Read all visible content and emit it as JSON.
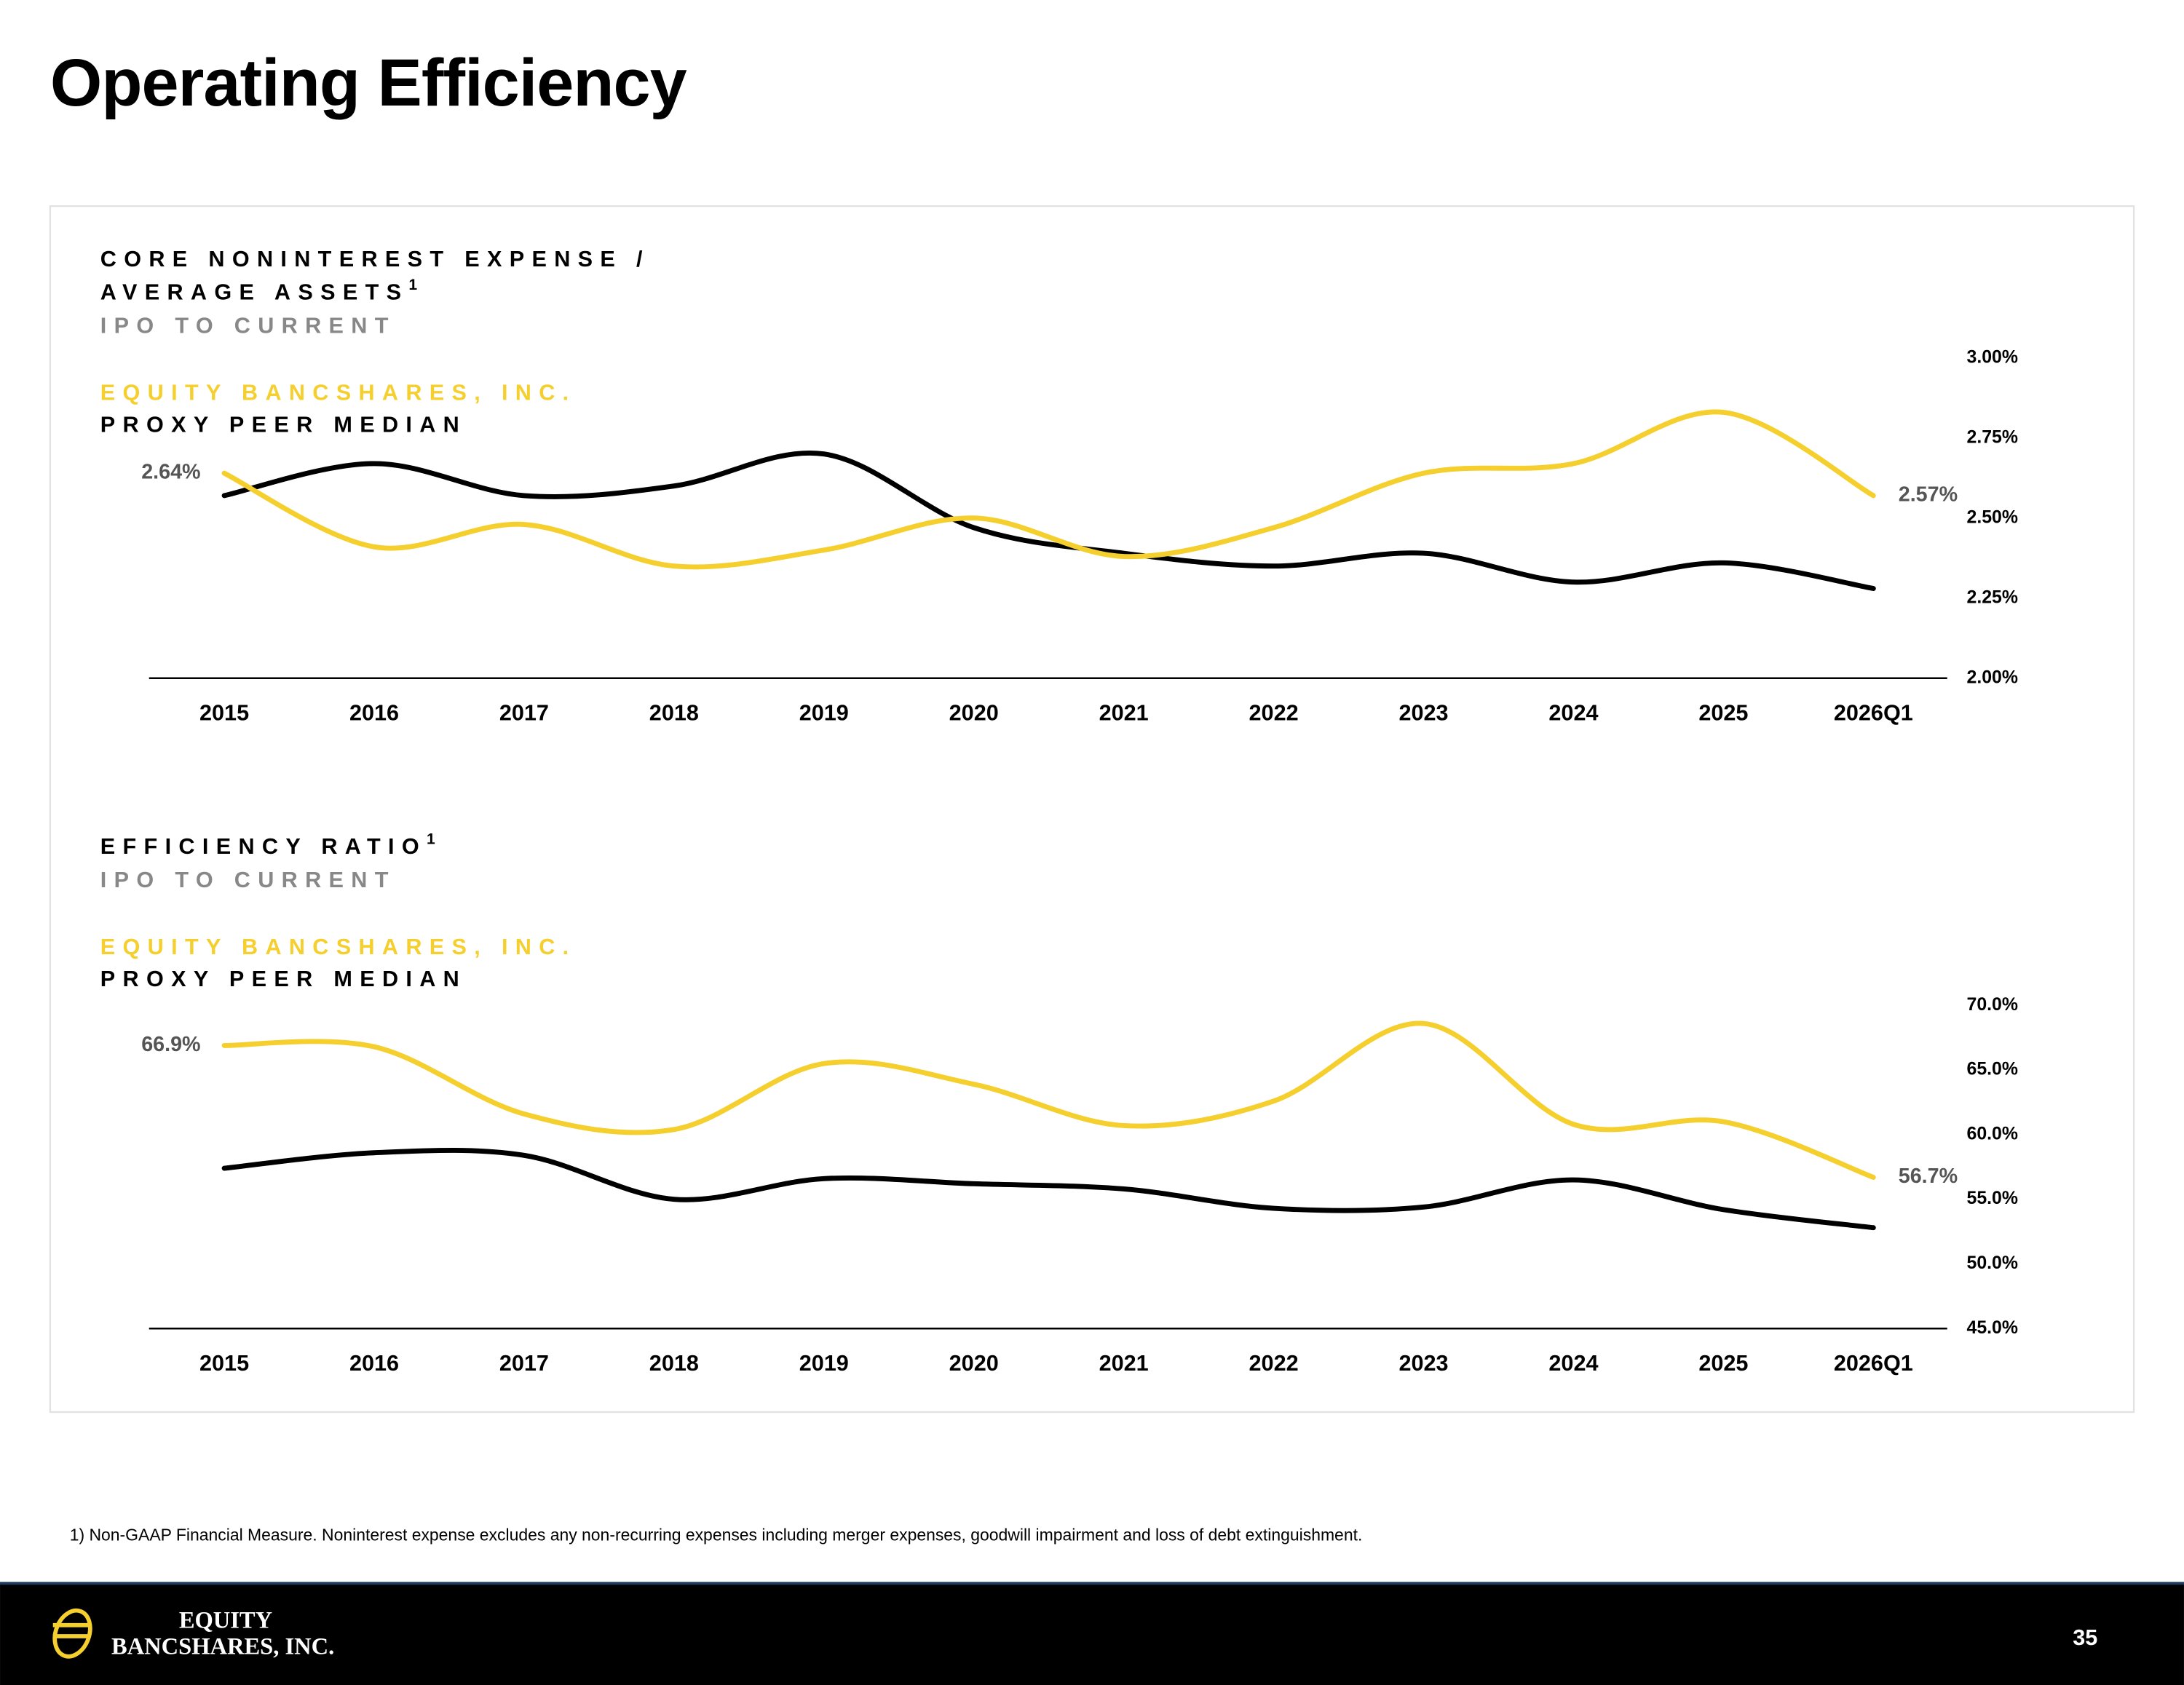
{
  "header": {
    "title": "Operating Efficiency"
  },
  "chart_data": [
    {
      "type": "line",
      "title": [
        "CORE NONINTEREST EXPENSE /",
        "AVERAGE ASSETS"
      ],
      "title_note": "1",
      "subtitle": "IPO TO CURRENT",
      "categories": [
        "2015",
        "2016",
        "2017",
        "2018",
        "2019",
        "2020",
        "2021",
        "2022",
        "2023",
        "2024",
        "2025",
        "2026Q1"
      ],
      "series": [
        {
          "name": "EQUITY BANCSHARES, INC.",
          "color": "#f5cf2e",
          "values": [
            2.64,
            2.41,
            2.48,
            2.35,
            2.4,
            2.5,
            2.38,
            2.47,
            2.64,
            2.67,
            2.83,
            2.57
          ],
          "value_labels": [
            "2.64%",
            null,
            null,
            null,
            null,
            null,
            null,
            null,
            null,
            null,
            null,
            "2.57%"
          ]
        },
        {
          "name": "PROXY PEER MEDIAN",
          "color": "#000000",
          "values": [
            2.57,
            2.67,
            2.57,
            2.6,
            2.7,
            2.47,
            2.39,
            2.35,
            2.39,
            2.3,
            2.36,
            2.28
          ]
        }
      ],
      "ylim": [
        2.0,
        3.0
      ],
      "yticks": [
        {
          "value": 2.0,
          "label": "2.00%"
        },
        {
          "value": 2.25,
          "label": "2.25%"
        },
        {
          "value": 2.5,
          "label": "2.50%"
        },
        {
          "value": 2.75,
          "label": "2.75%"
        },
        {
          "value": 3.0,
          "label": "3.00%"
        }
      ]
    },
    {
      "type": "line",
      "title": [
        "EFFICIENCY RATIO"
      ],
      "title_note": "1",
      "subtitle": "IPO TO CURRENT",
      "categories": [
        "2015",
        "2016",
        "2017",
        "2018",
        "2019",
        "2020",
        "2021",
        "2022",
        "2023",
        "2024",
        "2025",
        "2026Q1"
      ],
      "series": [
        {
          "name": "EQUITY BANCSHARES, INC.",
          "color": "#f5cf2e",
          "values": [
            66.9,
            66.8,
            61.6,
            60.4,
            65.5,
            63.9,
            60.7,
            62.6,
            68.6,
            60.8,
            61.0,
            56.7
          ],
          "value_labels": [
            "66.9%",
            null,
            null,
            null,
            null,
            null,
            null,
            null,
            null,
            null,
            null,
            "56.7%"
          ]
        },
        {
          "name": "PROXY PEER MEDIAN",
          "color": "#000000",
          "values": [
            57.4,
            58.6,
            58.4,
            55.0,
            56.6,
            56.2,
            55.8,
            54.3,
            54.4,
            56.5,
            54.2,
            52.8
          ]
        }
      ],
      "ylim": [
        45.0,
        70.0
      ],
      "yticks": [
        {
          "value": 45.0,
          "label": "45.0%"
        },
        {
          "value": 50.0,
          "label": "50.0%"
        },
        {
          "value": 55.0,
          "label": "55.0%"
        },
        {
          "value": 60.0,
          "label": "60.0%"
        },
        {
          "value": 65.0,
          "label": "65.0%"
        },
        {
          "value": 70.0,
          "label": "70.0%"
        }
      ]
    }
  ],
  "footnote": "1) Non-GAAP Financial Measure. Noninterest expense excludes any non-recurring expenses including merger expenses, goodwill impairment and loss of debt extinguishment.",
  "footer": {
    "logo": [
      "EQUITY",
      "BANCSHARES, INC."
    ],
    "page": "35"
  }
}
